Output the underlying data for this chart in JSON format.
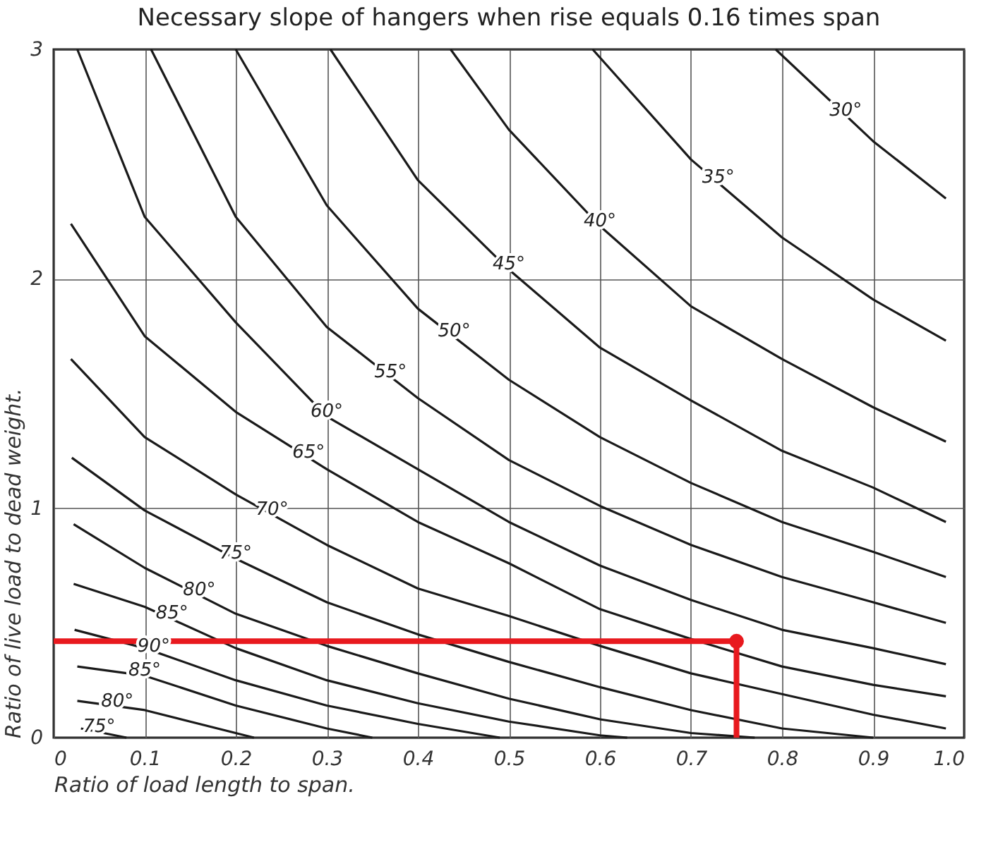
{
  "chart_data": {
    "type": "line",
    "title": "Necessary slope of hangers when rise equals 0.16 times span",
    "xlabel": "Ratio of load  length  to span.",
    "ylabel": "Ratio of live load  to dead  weight.",
    "xlim": [
      0,
      1
    ],
    "ylim": [
      0,
      3
    ],
    "xticks": [
      {
        "value": 0,
        "label": "0"
      },
      0.1,
      0.2,
      0.3,
      0.4,
      0.5,
      0.6,
      0.7,
      0.8,
      0.9,
      {
        "value": 1,
        "label": "1.0"
      }
    ],
    "yticks": [
      0,
      1,
      2,
      3
    ],
    "grid": true,
    "line_style": "solid",
    "marker": "none",
    "series": [
      {
        "color": "#1a1a1a",
        "x": [
          0.793,
          0.9,
          0.98
        ],
        "values": [
          3,
          2.6,
          2.35
        ]
      },
      {
        "color": "#1a1a1a",
        "x": [
          0.592,
          0.7,
          0.8,
          0.9,
          0.98
        ],
        "values": [
          3,
          2.52,
          2.18,
          1.91,
          1.73
        ]
      },
      {
        "color": "#1a1a1a",
        "x": [
          0.436,
          0.5,
          0.6,
          0.7,
          0.8,
          0.9,
          0.98
        ],
        "values": [
          3,
          2.65,
          2.23,
          1.88,
          1.65,
          1.44,
          1.29
        ]
      },
      {
        "color": "#1a1a1a",
        "x": [
          0.304,
          0.4,
          0.5,
          0.6,
          0.7,
          0.8,
          0.9,
          0.98
        ],
        "values": [
          3,
          2.43,
          2.04,
          1.7,
          1.47,
          1.25,
          1.09,
          0.94
        ]
      },
      {
        "color": "#1a1a1a",
        "x": [
          0.2,
          0.3,
          0.4,
          0.5,
          0.6,
          0.7,
          0.8,
          0.9,
          0.98
        ],
        "values": [
          3,
          2.32,
          1.87,
          1.56,
          1.31,
          1.11,
          0.94,
          0.81,
          0.7
        ]
      },
      {
        "color": "#1a1a1a",
        "x": [
          0.107,
          0.2,
          0.3,
          0.4,
          0.5,
          0.6,
          0.7,
          0.8,
          0.9,
          0.98
        ],
        "values": [
          3,
          2.27,
          1.79,
          1.48,
          1.21,
          1.01,
          0.84,
          0.7,
          0.59,
          0.5
        ]
      },
      {
        "color": "#1a1a1a",
        "x": [
          0.026,
          0.1,
          0.2,
          0.3,
          0.4,
          0.5,
          0.6,
          0.7,
          0.8,
          0.9,
          0.98
        ],
        "values": [
          3,
          2.27,
          1.81,
          1.4,
          1.17,
          0.94,
          0.75,
          0.6,
          0.47,
          0.39,
          0.32
        ]
      },
      {
        "color": "#1a1a1a",
        "x": [
          0.019,
          0.1,
          0.2,
          0.3,
          0.4,
          0.5,
          0.6,
          0.7,
          0.8,
          0.9,
          0.98
        ],
        "values": [
          2.24,
          1.75,
          1.42,
          1.17,
          0.94,
          0.76,
          0.56,
          0.43,
          0.31,
          0.23,
          0.18
        ]
      },
      {
        "color": "#1a1a1a",
        "x": [
          0.019,
          0.1,
          0.2,
          0.3,
          0.4,
          0.5,
          0.6,
          0.7,
          0.8,
          0.9,
          0.98
        ],
        "values": [
          1.65,
          1.31,
          1.06,
          0.84,
          0.65,
          0.53,
          0.4,
          0.28,
          0.19,
          0.1,
          0.04
        ]
      },
      {
        "color": "#1a1a1a",
        "x": [
          0.02,
          0.1,
          0.2,
          0.3,
          0.4,
          0.5,
          0.6,
          0.7,
          0.8,
          0.9
        ],
        "values": [
          1.22,
          0.99,
          0.78,
          0.59,
          0.45,
          0.33,
          0.22,
          0.12,
          0.04,
          0
        ]
      },
      {
        "color": "#1a1a1a",
        "x": [
          0.022,
          0.1,
          0.2,
          0.3,
          0.4,
          0.5,
          0.6,
          0.7,
          0.77
        ],
        "values": [
          0.93,
          0.74,
          0.54,
          0.4,
          0.28,
          0.17,
          0.08,
          0.02,
          0
        ]
      },
      {
        "color": "#1a1a1a",
        "x": [
          0.022,
          0.1,
          0.2,
          0.3,
          0.4,
          0.5,
          0.6,
          0.63
        ],
        "values": [
          0.67,
          0.57,
          0.39,
          0.25,
          0.15,
          0.07,
          0.01,
          0
        ]
      },
      {
        "color": "#1a1a1a",
        "x": [
          0.023,
          0.1,
          0.2,
          0.3,
          0.4,
          0.49
        ],
        "values": [
          0.47,
          0.39,
          0.25,
          0.14,
          0.06,
          0
        ]
      },
      {
        "color": "#1a1a1a",
        "x": [
          0.026,
          0.1,
          0.2,
          0.3,
          0.35
        ],
        "values": [
          0.31,
          0.27,
          0.14,
          0.04,
          0
        ]
      },
      {
        "color": "#1a1a1a",
        "x": [
          0.026,
          0.1,
          0.22
        ],
        "values": [
          0.16,
          0.12,
          0
        ]
      },
      {
        "color": "#1a1a1a",
        "x": [
          0.03,
          0.08
        ],
        "values": [
          0.04,
          0
        ]
      },
      {
        "type": "line",
        "color": "#e8191e",
        "x": [
          0,
          0.75,
          0.75
        ],
        "values": [
          0.42,
          0.42,
          0
        ]
      },
      {
        "type": "scatter",
        "marker": "circle",
        "color": "#e8191e",
        "x": [
          0.75
        ],
        "values": [
          0.42
        ]
      }
    ],
    "annotations": [
      {
        "text": "30°",
        "x": 0.87,
        "y": 2.71
      },
      {
        "text": "35°",
        "x": 0.73,
        "y": 2.42
      },
      {
        "text": "40°",
        "x": 0.6,
        "y": 2.23
      },
      {
        "text": "45°",
        "x": 0.5,
        "y": 2.04
      },
      {
        "text": "50°",
        "x": 0.44,
        "y": 1.75
      },
      {
        "text": "55°",
        "x": 0.37,
        "y": 1.57
      },
      {
        "text": "60°",
        "x": 0.3,
        "y": 1.4
      },
      {
        "text": "65°",
        "x": 0.28,
        "y": 1.22
      },
      {
        "text": "70°",
        "x": 0.24,
        "y": 0.97
      },
      {
        "text": "75°",
        "x": 0.2,
        "y": 0.78
      },
      {
        "text": "80°",
        "x": 0.16,
        "y": 0.62
      },
      {
        "text": "85°",
        "x": 0.13,
        "y": 0.52
      },
      {
        "text": "90°",
        "x": 0.11,
        "y": 0.376
      },
      {
        "text": "85°",
        "x": 0.1,
        "y": 0.27
      },
      {
        "text": "80°",
        "x": 0.07,
        "y": 0.136
      },
      {
        "text": "75°",
        "x": 0.05,
        "y": 0.024
      }
    ]
  }
}
